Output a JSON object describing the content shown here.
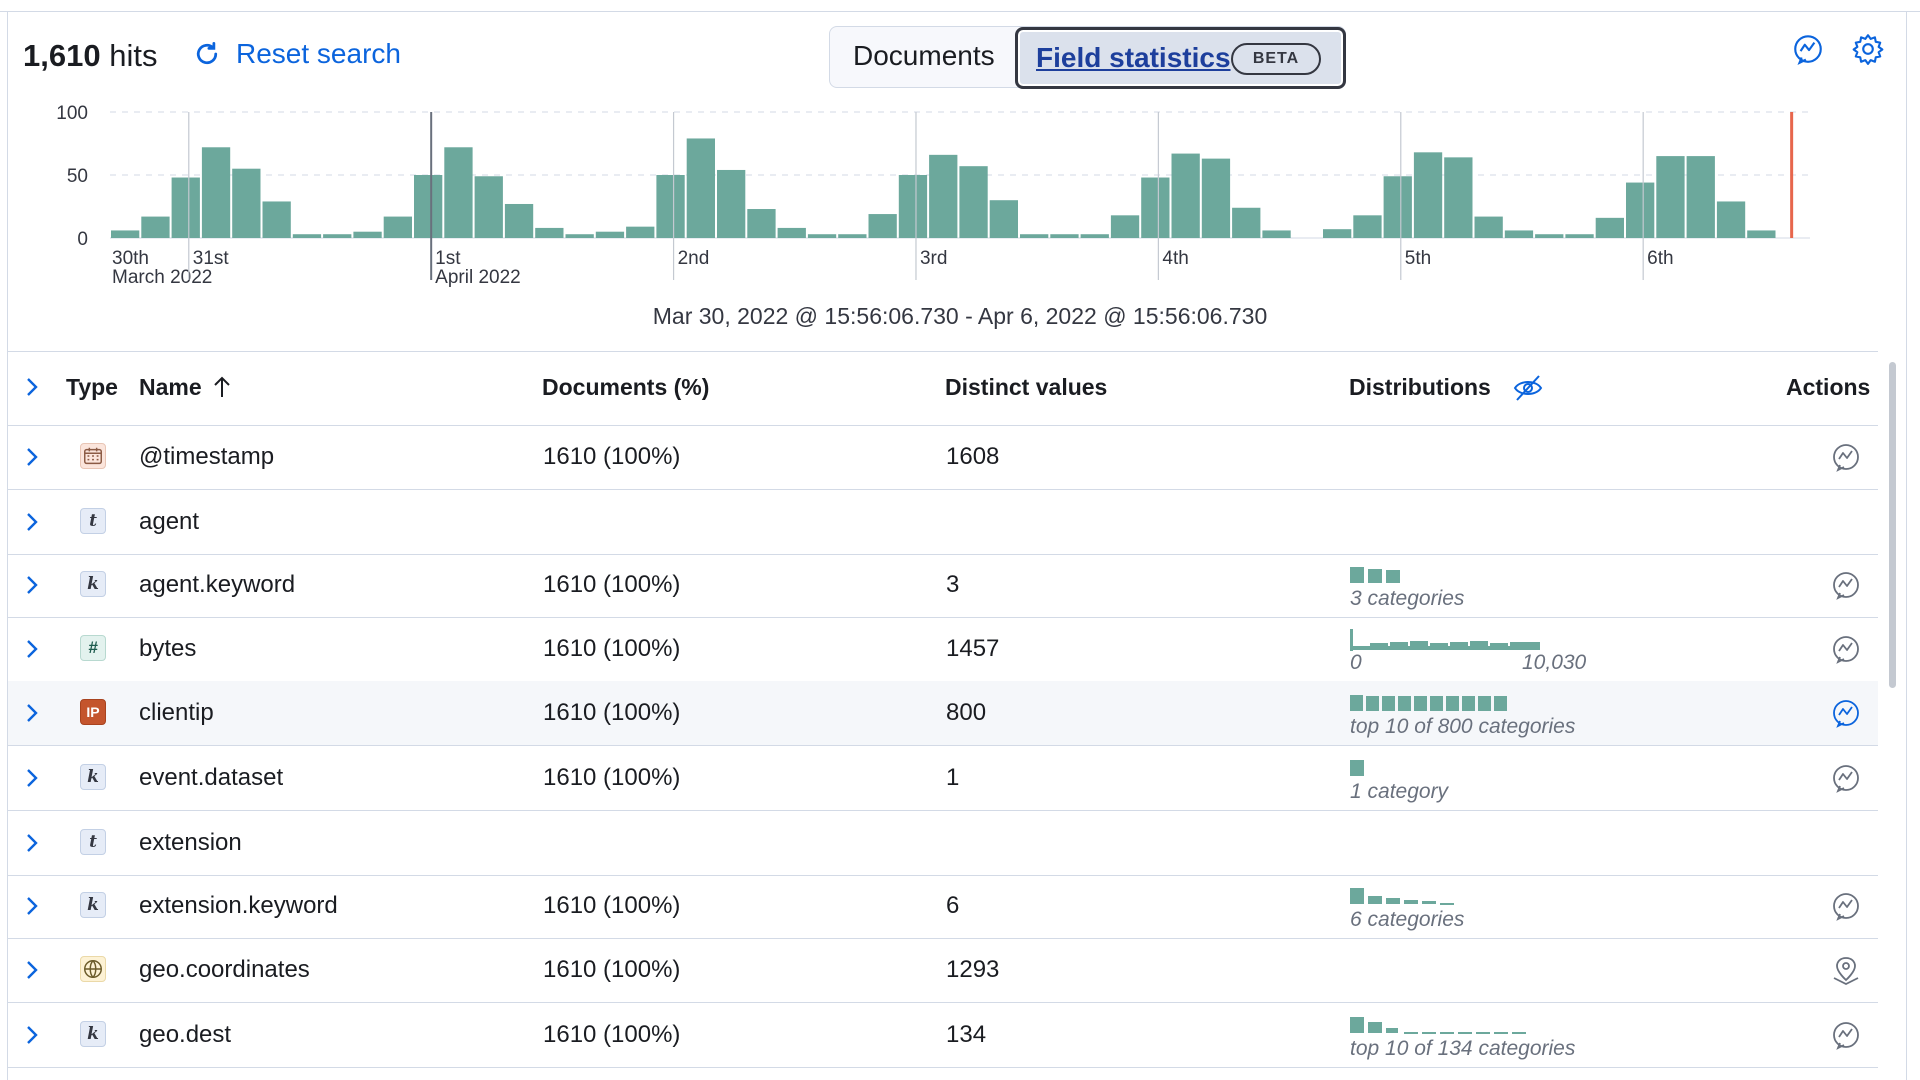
{
  "header": {
    "hits_count": "1,610",
    "hits_label": "hits",
    "reset_label": "Reset search"
  },
  "tabs": {
    "documents": "Documents",
    "field_statistics": "Field statistics",
    "beta": "BETA"
  },
  "icons": {
    "reset": "refresh-icon",
    "ai": "ai-assistant-icon",
    "settings": "gear-icon",
    "hide_dist": "eye-closed-icon",
    "expand": "chevron-right-icon",
    "sort": "arrow-up-icon"
  },
  "colors": {
    "bar": "#6ca89c",
    "accent": "#0b64dd",
    "now_marker": "#e7664c"
  },
  "range_text": "Mar 30, 2022 @ 15:56:06.730 - Apr 6, 2022 @ 15:56:06.730",
  "chart_data": {
    "type": "bar",
    "y_ticks": [
      "100",
      "50",
      "0"
    ],
    "ylim": [
      0,
      100
    ],
    "x_tick_labels": [
      {
        "label": "30th",
        "sub": "March 2022",
        "bin": 0
      },
      {
        "label": "31st",
        "sub": "",
        "bin": 2.6
      },
      {
        "label": "1st",
        "sub": "April 2022",
        "bin": 10.6
      },
      {
        "label": "2nd",
        "sub": "",
        "bin": 18.6
      },
      {
        "label": "3rd",
        "sub": "",
        "bin": 26.6
      },
      {
        "label": "4th",
        "sub": "",
        "bin": 34.6
      },
      {
        "label": "5th",
        "sub": "",
        "bin": 42.6
      },
      {
        "label": "6th",
        "sub": "",
        "bin": 50.6
      }
    ],
    "values": [
      6,
      17,
      48,
      72,
      55,
      29,
      3,
      3,
      5,
      17,
      50,
      72,
      49,
      27,
      8,
      3,
      5,
      9,
      50,
      79,
      54,
      23,
      8,
      3,
      3,
      19,
      50,
      66,
      57,
      30,
      3,
      3,
      3,
      18,
      48,
      67,
      63,
      24,
      6,
      0,
      7,
      18,
      49,
      68,
      64,
      17,
      6,
      3,
      3,
      16,
      44,
      65,
      65,
      29,
      6
    ],
    "now_marker_bin": 55.5
  },
  "table": {
    "columns": {
      "type": "Type",
      "name": "Name",
      "documents": "Documents (%)",
      "distinct": "Distinct values",
      "distributions": "Distributions",
      "actions": "Actions"
    },
    "rows": [
      {
        "type_icon": "date-icon",
        "type_glyph": "",
        "name": "@timestamp",
        "documents": "1610 (100%)",
        "distinct": "1608",
        "dist_label": "",
        "action_icon": "ai-assistant-icon"
      },
      {
        "type_icon": "text-type-icon",
        "type_glyph": "t",
        "name": "agent",
        "documents": "",
        "distinct": "",
        "dist_label": "",
        "action_icon": ""
      },
      {
        "type_icon": "keyword-type-icon",
        "type_glyph": "k",
        "name": "agent.keyword",
        "documents": "1610 (100%)",
        "distinct": "3",
        "dist_label": "3 categories",
        "action_icon": "ai-assistant-icon"
      },
      {
        "type_icon": "number-type-icon",
        "type_glyph": "#",
        "name": "bytes",
        "documents": "1610 (100%)",
        "distinct": "1457",
        "dist_label": "",
        "dist_min": "0",
        "dist_max": "10,030",
        "action_icon": "ai-assistant-icon"
      },
      {
        "type_icon": "ip-type-icon",
        "type_glyph": "IP",
        "name": "clientip",
        "documents": "1610 (100%)",
        "distinct": "800",
        "dist_label": "top 10 of 800 categories",
        "action_icon": "ai-assistant-icon"
      },
      {
        "type_icon": "keyword-type-icon",
        "type_glyph": "k",
        "name": "event.dataset",
        "documents": "1610 (100%)",
        "distinct": "1",
        "dist_label": "1 category",
        "action_icon": "ai-assistant-icon"
      },
      {
        "type_icon": "text-type-icon",
        "type_glyph": "t",
        "name": "extension",
        "documents": "",
        "distinct": "",
        "dist_label": "",
        "action_icon": ""
      },
      {
        "type_icon": "keyword-type-icon",
        "type_glyph": "k",
        "name": "extension.keyword",
        "documents": "1610 (100%)",
        "distinct": "6",
        "dist_label": "6 categories",
        "action_icon": "ai-assistant-icon"
      },
      {
        "type_icon": "geo-type-icon",
        "type_glyph": "",
        "name": "geo.coordinates",
        "documents": "1610 (100%)",
        "distinct": "1293",
        "dist_label": "",
        "action_icon": "map-pin-icon"
      },
      {
        "type_icon": "keyword-type-icon",
        "type_glyph": "k",
        "name": "geo.dest",
        "documents": "1610 (100%)",
        "distinct": "134",
        "dist_label": "top 10 of 134 categories",
        "action_icon": "ai-assistant-icon"
      }
    ]
  }
}
